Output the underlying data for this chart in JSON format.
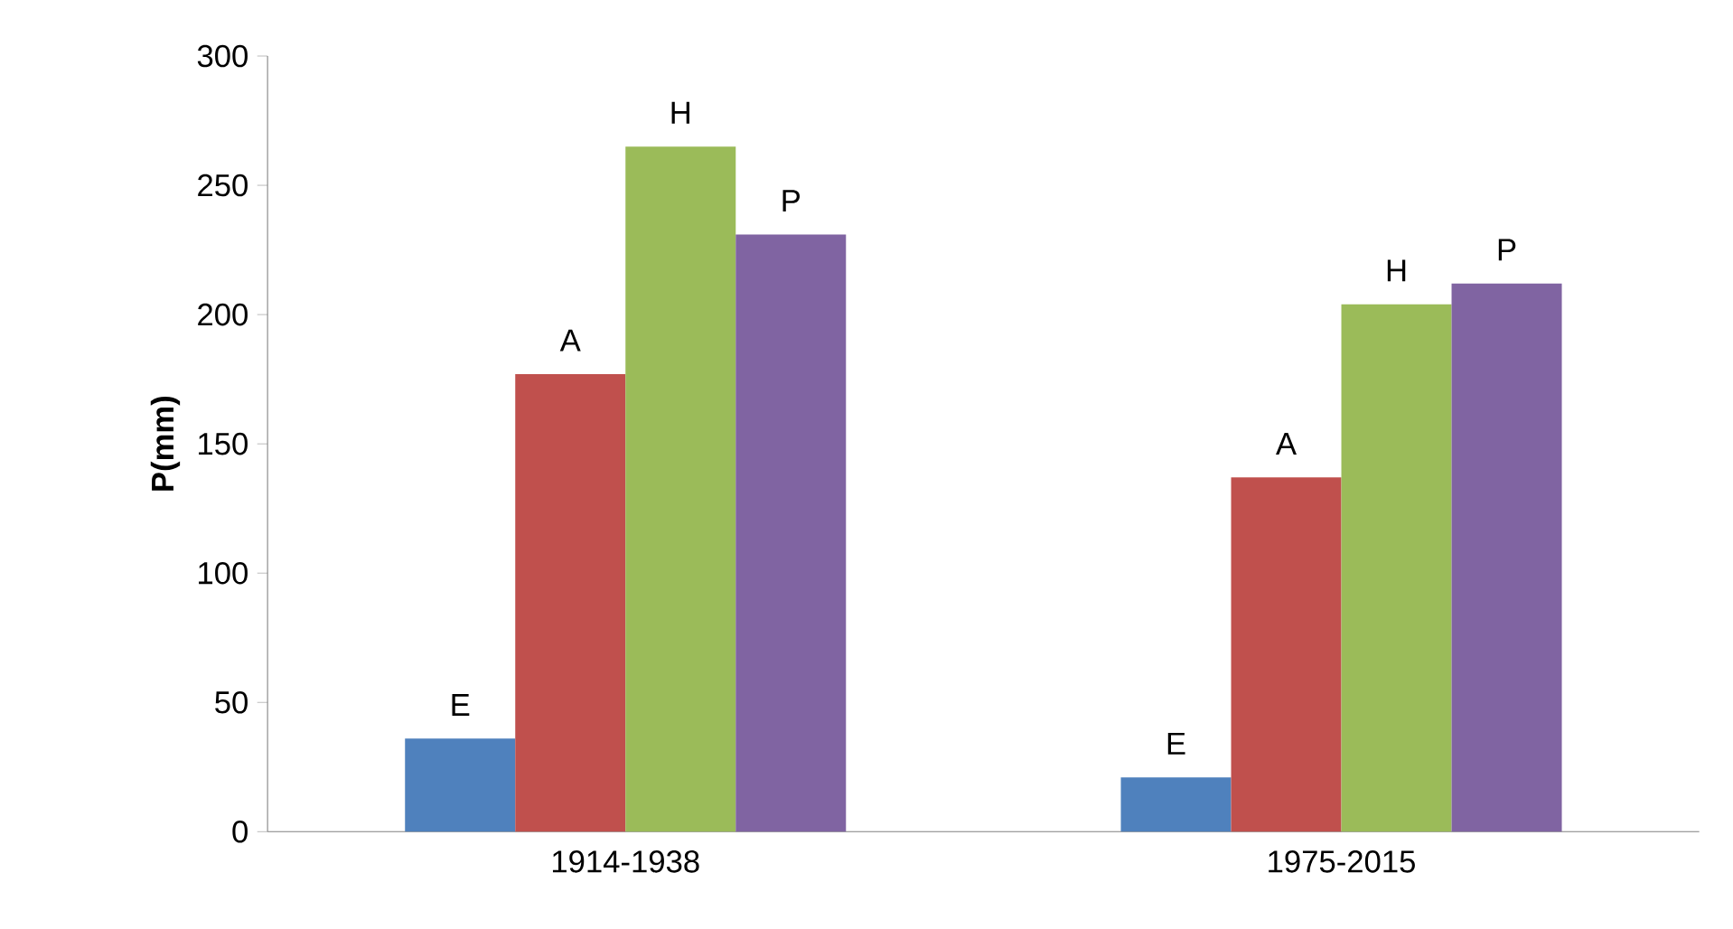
{
  "chart_data": {
    "type": "bar",
    "ylabel": "P(mm)",
    "categories": [
      "1914-1938",
      "1975-2015"
    ],
    "series": [
      {
        "name": "E",
        "color": "#4f81bd",
        "values": [
          36,
          21
        ]
      },
      {
        "name": "A",
        "color": "#c0504d",
        "values": [
          177,
          137
        ]
      },
      {
        "name": "H",
        "color": "#9bbb59",
        "values": [
          265,
          204
        ]
      },
      {
        "name": "P",
        "color": "#8064a2",
        "values": [
          231,
          212
        ]
      }
    ],
    "ylim": [
      0,
      300
    ],
    "yticks": [
      0,
      50,
      100,
      150,
      200,
      250,
      300
    ],
    "grid": false
  }
}
